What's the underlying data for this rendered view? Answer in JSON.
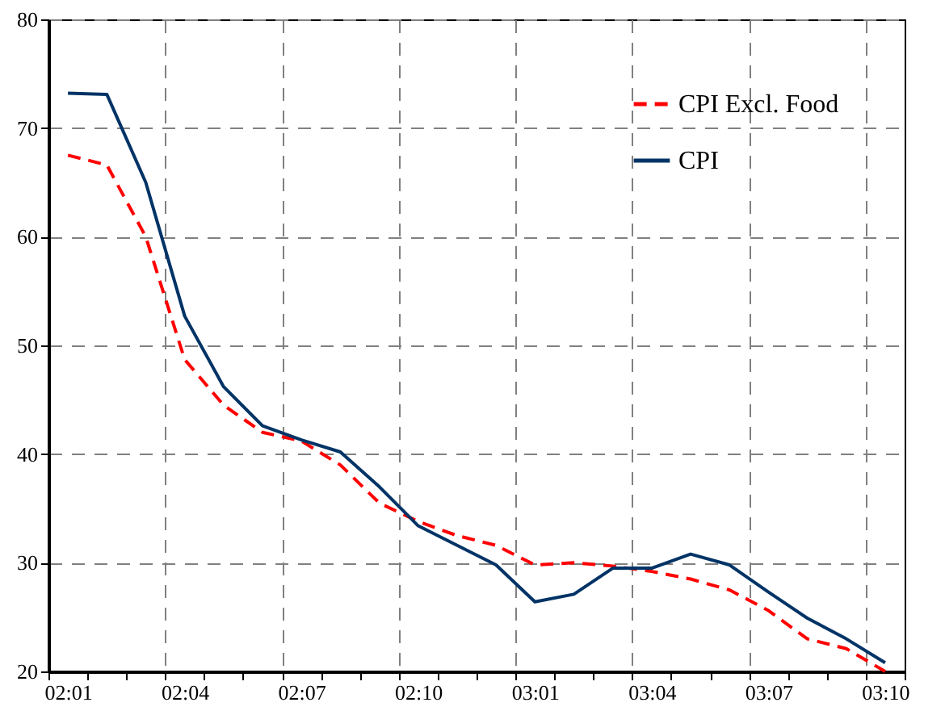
{
  "chart_data": {
    "type": "line",
    "categories": [
      "02:01",
      null,
      null,
      "02:04",
      null,
      null,
      "02:07",
      null,
      null,
      "02:10",
      null,
      null,
      "03:01",
      null,
      null,
      "03:04",
      null,
      null,
      "03:07",
      null,
      null,
      "03:10"
    ],
    "series": [
      {
        "name": "CPI Excl. Food",
        "color": "#ff0000",
        "line_style": "dashed",
        "values": [
          67.5,
          66.6,
          60,
          48.7,
          44.5,
          42,
          41.2,
          39,
          35.5,
          33.8,
          32.5,
          31.6,
          29.8,
          30,
          29.7,
          29.2,
          28.5,
          27.5,
          25.6,
          23,
          22.1,
          20
        ]
      },
      {
        "name": "CPI",
        "color": "#003366",
        "line_style": "solid",
        "values": [
          73.2,
          73.1,
          65,
          52.7,
          46.2,
          42.6,
          41.3,
          40.2,
          37,
          33.4,
          31.6,
          29.8,
          26.4,
          27.1,
          29.5,
          29.5,
          30.8,
          29.8,
          27.3,
          24.9,
          23,
          20.8
        ]
      }
    ],
    "ylim": [
      20,
      80
    ],
    "yticks": [
      20,
      30,
      40,
      50,
      60,
      70,
      80
    ],
    "grid": true,
    "legend": "top right",
    "marker": "none"
  }
}
